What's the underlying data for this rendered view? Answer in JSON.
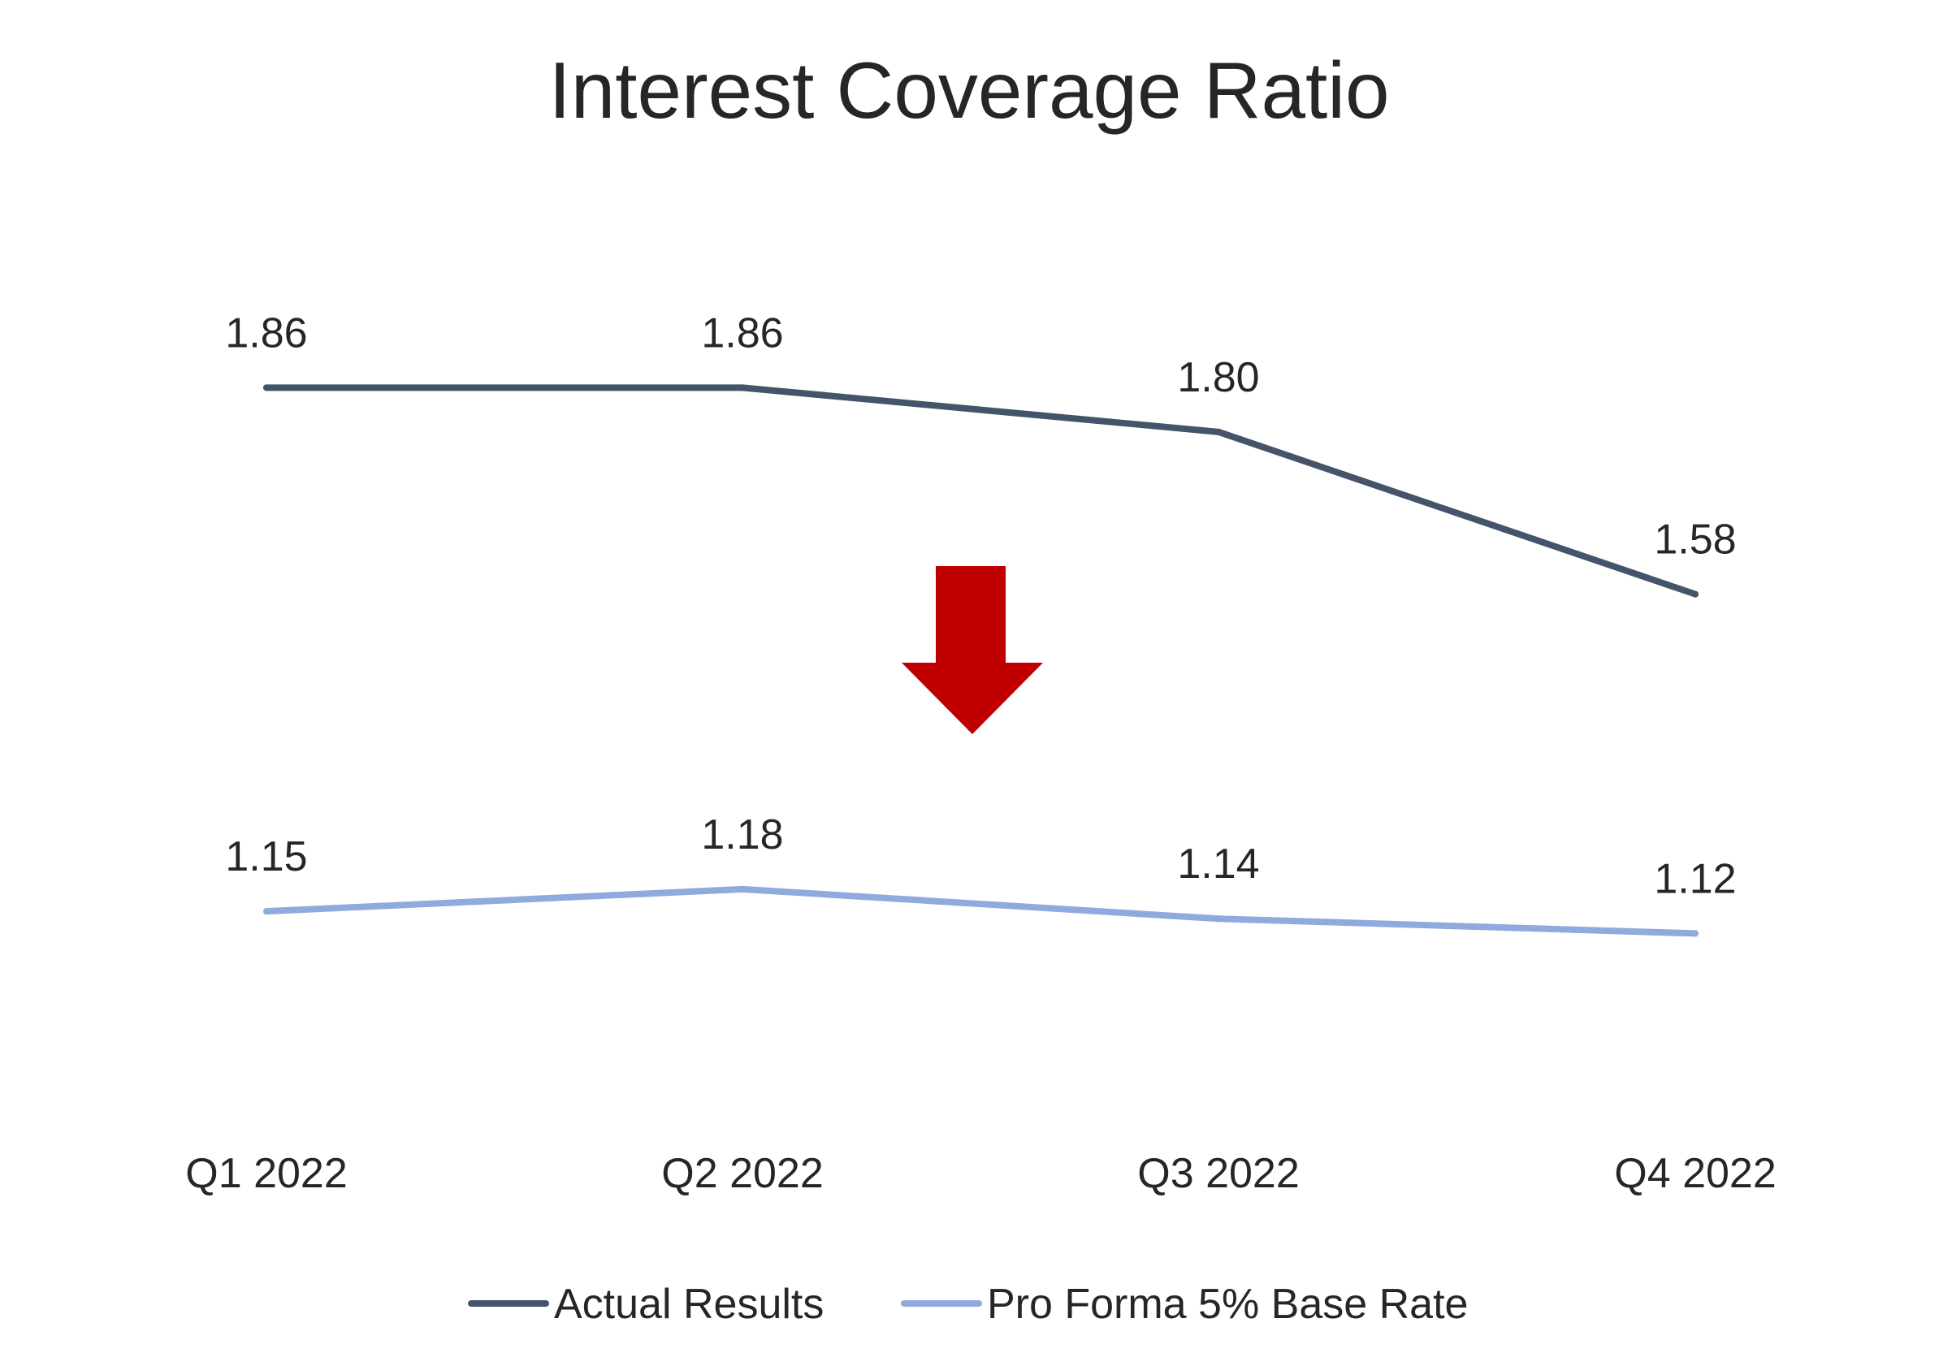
{
  "chart_data": {
    "type": "line",
    "title": "Interest Coverage Ratio",
    "xlabel": "",
    "ylabel": "",
    "categories": [
      "Q1 2022",
      "Q2 2022",
      "Q3 2022",
      "Q4 2022"
    ],
    "series": [
      {
        "name": "Actual Results",
        "values": [
          1.86,
          1.86,
          1.8,
          1.58
        ],
        "labels": [
          "1.86",
          "1.86",
          "1.80",
          "1.58"
        ],
        "color": "#44546A"
      },
      {
        "name": "Pro Forma 5% Base Rate",
        "values": [
          1.15,
          1.18,
          1.14,
          1.12
        ],
        "labels": [
          "1.15",
          "1.18",
          "1.14",
          "1.12"
        ],
        "color": "#8FAADC"
      }
    ],
    "ylim": [
      0.8,
      2.3
    ],
    "grid": false,
    "legend_position": "bottom",
    "annotation": {
      "type": "down-arrow",
      "color": "#C00000"
    }
  }
}
